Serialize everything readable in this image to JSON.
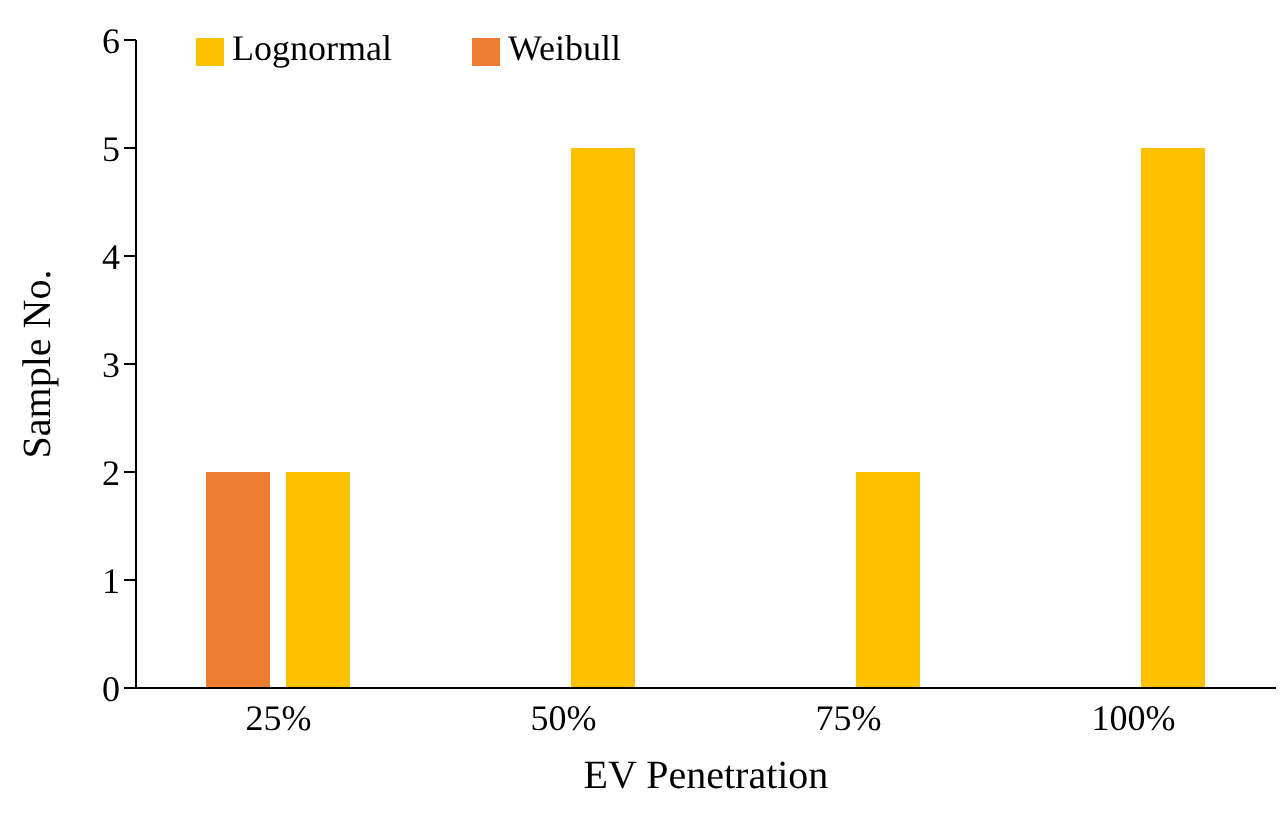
{
  "chart_data": {
    "type": "bar",
    "xlabel": "EV Penetration",
    "ylabel": "Sample No.",
    "categories": [
      "25%",
      "50%",
      "75%",
      "100%"
    ],
    "series": [
      {
        "name": "Weibull",
        "color": "#ed7d31",
        "values": [
          2,
          0,
          0,
          0
        ]
      },
      {
        "name": "Lognormal",
        "color": "#ffc000",
        "values": [
          2,
          5,
          2,
          5
        ]
      }
    ],
    "ylim": [
      0,
      6
    ],
    "yticks": [
      0,
      1,
      2,
      3,
      4,
      5,
      6
    ],
    "grid": false,
    "legend": "top left"
  }
}
